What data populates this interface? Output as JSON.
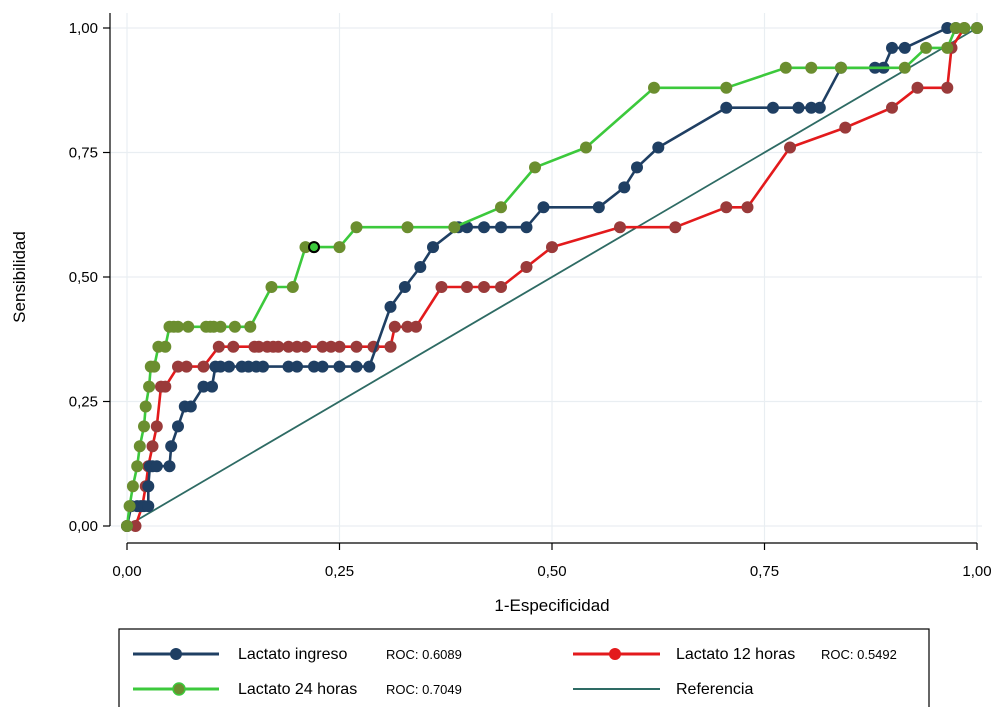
{
  "chart_data": {
    "type": "line",
    "xlabel": "1-Especificidad",
    "ylabel": "Sensibilidad",
    "xlim": [
      0,
      1
    ],
    "ylim": [
      0,
      1
    ],
    "xticks": [
      "0,00",
      "0,25",
      "0,50",
      "0,75",
      "1,00"
    ],
    "yticks": [
      "0,00",
      "0,25",
      "0,50",
      "0,75",
      "1,00"
    ],
    "grid": true,
    "legend_position": "bottom",
    "series": [
      {
        "name": "Lactato ingreso",
        "roc": "ROC: 0.6089",
        "color": "#1f3f63",
        "marker_color": "#1f3f63",
        "x": [
          0,
          0.005,
          0.012,
          0.016,
          0.02,
          0.025,
          0.025,
          0.027,
          0.03,
          0.035,
          0.05,
          0.052,
          0.06,
          0.068,
          0.075,
          0.09,
          0.1,
          0.104,
          0.11,
          0.12,
          0.135,
          0.143,
          0.152,
          0.16,
          0.19,
          0.2,
          0.22,
          0.23,
          0.25,
          0.27,
          0.285,
          0.31,
          0.327,
          0.345,
          0.36,
          0.39,
          0.4,
          0.42,
          0.44,
          0.47,
          0.49,
          0.555,
          0.585,
          0.6,
          0.625,
          0.705,
          0.76,
          0.79,
          0.805,
          0.815,
          0.84,
          0.88,
          0.89,
          0.9,
          0.915,
          0.965,
          0.975,
          1.0
        ],
        "y": [
          0,
          0.04,
          0.04,
          0.04,
          0.04,
          0.04,
          0.08,
          0.12,
          0.12,
          0.12,
          0.12,
          0.16,
          0.2,
          0.24,
          0.24,
          0.28,
          0.28,
          0.32,
          0.32,
          0.32,
          0.32,
          0.32,
          0.32,
          0.32,
          0.32,
          0.32,
          0.32,
          0.32,
          0.32,
          0.32,
          0.32,
          0.44,
          0.48,
          0.52,
          0.56,
          0.6,
          0.6,
          0.6,
          0.6,
          0.6,
          0.64,
          0.64,
          0.68,
          0.72,
          0.76,
          0.84,
          0.84,
          0.84,
          0.84,
          0.84,
          0.92,
          0.92,
          0.92,
          0.96,
          0.96,
          1.0,
          1.0,
          1.0
        ]
      },
      {
        "name": "Lactato 12 horas",
        "roc": "ROC: 0.5492",
        "color": "#e31a1c",
        "marker_color": "#9a3a3a",
        "x": [
          0,
          0.01,
          0.018,
          0.022,
          0.025,
          0.03,
          0.035,
          0.04,
          0.045,
          0.06,
          0.07,
          0.09,
          0.108,
          0.125,
          0.15,
          0.155,
          0.165,
          0.172,
          0.178,
          0.19,
          0.2,
          0.21,
          0.23,
          0.24,
          0.25,
          0.27,
          0.29,
          0.31,
          0.315,
          0.33,
          0.34,
          0.37,
          0.4,
          0.42,
          0.44,
          0.47,
          0.5,
          0.58,
          0.645,
          0.705,
          0.73,
          0.78,
          0.845,
          0.9,
          0.93,
          0.965,
          0.97,
          0.985
        ],
        "y": [
          0,
          0.0,
          0.04,
          0.08,
          0.12,
          0.16,
          0.2,
          0.28,
          0.28,
          0.32,
          0.32,
          0.32,
          0.36,
          0.36,
          0.36,
          0.36,
          0.36,
          0.36,
          0.36,
          0.36,
          0.36,
          0.36,
          0.36,
          0.36,
          0.36,
          0.36,
          0.36,
          0.36,
          0.4,
          0.4,
          0.4,
          0.48,
          0.48,
          0.48,
          0.48,
          0.52,
          0.56,
          0.6,
          0.6,
          0.64,
          0.64,
          0.76,
          0.8,
          0.84,
          0.88,
          0.88,
          0.96,
          1.0
        ]
      },
      {
        "name": "Lactato 24 horas",
        "roc": "ROC: 0.7049",
        "color": "#3cc93c",
        "marker_color": "#6b8e2f",
        "x": [
          0,
          0.003,
          0.007,
          0.012,
          0.015,
          0.02,
          0.022,
          0.026,
          0.028,
          0.032,
          0.037,
          0.045,
          0.05,
          0.055,
          0.06,
          0.072,
          0.093,
          0.098,
          0.102,
          0.11,
          0.127,
          0.145,
          0.17,
          0.195,
          0.21,
          0.22,
          0.25,
          0.27,
          0.33,
          0.385,
          0.44,
          0.48,
          0.54,
          0.62,
          0.705,
          0.775,
          0.805,
          0.84,
          0.915,
          0.94,
          0.965,
          0.975,
          0.985,
          1.0
        ],
        "y": [
          0,
          0.04,
          0.08,
          0.12,
          0.16,
          0.2,
          0.24,
          0.28,
          0.32,
          0.32,
          0.36,
          0.36,
          0.4,
          0.4,
          0.4,
          0.4,
          0.4,
          0.4,
          0.4,
          0.4,
          0.4,
          0.4,
          0.48,
          0.48,
          0.56,
          0.56,
          0.56,
          0.6,
          0.6,
          0.6,
          0.64,
          0.72,
          0.76,
          0.88,
          0.88,
          0.92,
          0.92,
          0.92,
          0.92,
          0.96,
          0.96,
          1.0,
          1.0,
          1.0
        ],
        "highlight": {
          "x": 0.22,
          "y": 0.56
        }
      },
      {
        "name": "Referencia",
        "roc": "",
        "color": "#2e6b64",
        "x": [
          0,
          1
        ],
        "y": [
          0,
          1
        ],
        "markers": false
      }
    ]
  }
}
